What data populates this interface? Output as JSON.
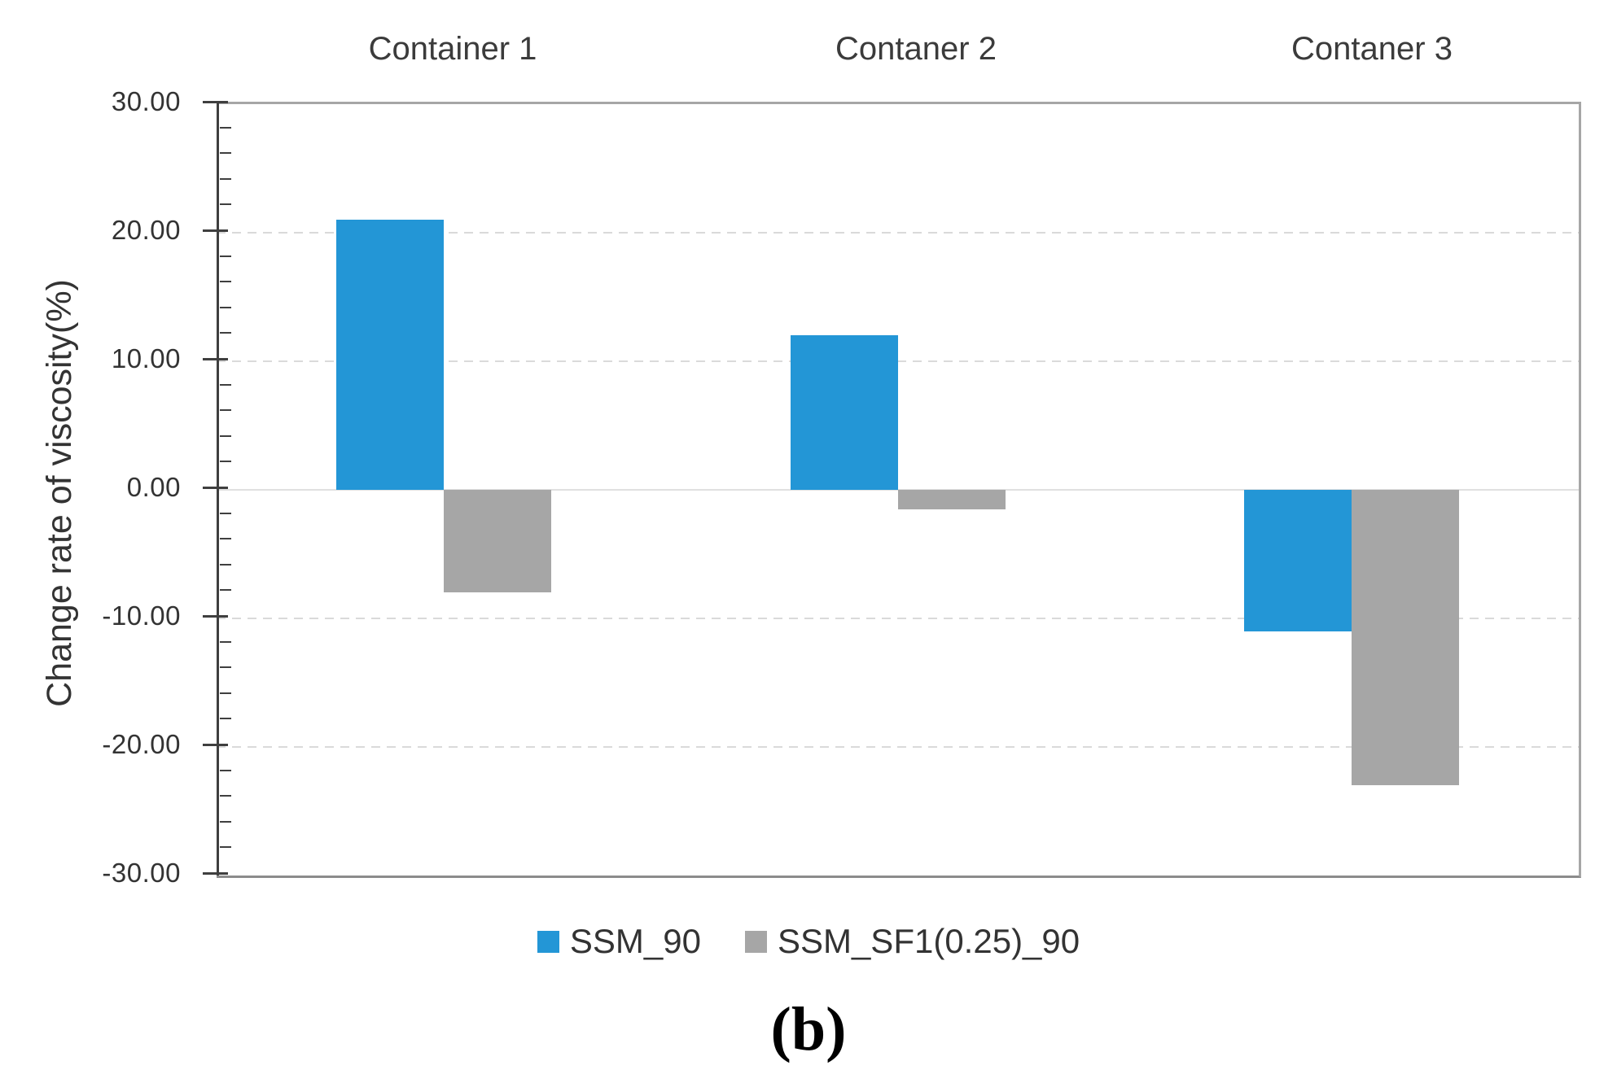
{
  "figure": {
    "caption": "(b)"
  },
  "chart_data": {
    "type": "bar",
    "title": "",
    "categories": [
      "Container 1",
      "Contaner 2",
      "Contaner 3"
    ],
    "series": [
      {
        "name": "SSM_90",
        "color": "#2396D6",
        "values": [
          21,
          12,
          -11
        ]
      },
      {
        "name": "SSM_SF1(0.25)_90",
        "color": "#A6A6A6",
        "values": [
          -8,
          -1.5,
          -23
        ]
      }
    ],
    "xlabel": "",
    "ylabel": "Change rate of viscosity(%)",
    "ylim": [
      -30,
      30
    ],
    "ytick_step": 10,
    "minor_tick_step": 2,
    "ytick_labels": [
      "30.00",
      "20.00",
      "10.00",
      "0.00",
      "-10.00",
      "-20.00",
      "-30.00"
    ],
    "grid": "horizontal major gridlines dashed, zero line solid light gray",
    "legend_position": "bottom-center",
    "axis_color": "#3F3F3F",
    "gridline_color": "#DADADA",
    "border_color": "#A6A6A6"
  }
}
